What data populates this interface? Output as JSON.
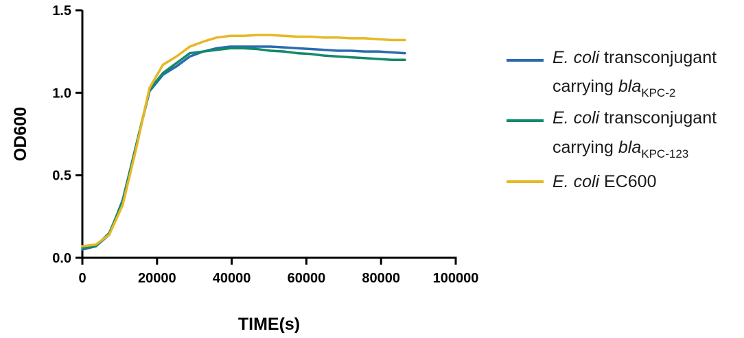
{
  "chart_data": {
    "type": "line",
    "xlabel": "TIME(s)",
    "ylabel": "OD600",
    "xlim": [
      0,
      100000
    ],
    "ylim": [
      0,
      1.5
    ],
    "x_ticks": [
      "0",
      "20000",
      "40000",
      "60000",
      "80000",
      "100000"
    ],
    "y_ticks": [
      "0.0",
      "0.5",
      "1.0",
      "1.5"
    ],
    "grid": false,
    "legend_position": "right",
    "x": [
      0,
      3600,
      7200,
      10800,
      14400,
      18000,
      21600,
      25200,
      28800,
      32400,
      36000,
      39600,
      43200,
      46800,
      50400,
      54000,
      57600,
      61200,
      64800,
      68400,
      72000,
      75600,
      79200,
      82800,
      86400
    ],
    "series": [
      {
        "color": "#2a6bb0",
        "legend": {
          "line1_italic": "E. coli",
          "line1_text": " transconjugant",
          "line2_text": "carrying ",
          "line2_italic": "bla",
          "line2_sub": "KPC-2"
        },
        "values": [
          0.05,
          0.07,
          0.14,
          0.35,
          0.68,
          1.01,
          1.11,
          1.16,
          1.22,
          1.25,
          1.27,
          1.28,
          1.28,
          1.28,
          1.28,
          1.275,
          1.27,
          1.265,
          1.26,
          1.255,
          1.255,
          1.25,
          1.25,
          1.245,
          1.24
        ]
      },
      {
        "color": "#128a6a",
        "legend": {
          "line1_italic": "E. coli",
          "line1_text": " transconjugant",
          "line2_text": "carrying ",
          "line2_italic": "bla",
          "line2_sub": "KPC-123"
        },
        "values": [
          0.06,
          0.07,
          0.15,
          0.34,
          0.68,
          1.02,
          1.12,
          1.18,
          1.24,
          1.25,
          1.26,
          1.27,
          1.27,
          1.265,
          1.255,
          1.25,
          1.24,
          1.235,
          1.225,
          1.22,
          1.215,
          1.21,
          1.205,
          1.2,
          1.2
        ]
      },
      {
        "color": "#e6b824",
        "legend": {
          "line1_italic": "E. coli",
          "line1_text": " EC600"
        },
        "values": [
          0.07,
          0.08,
          0.14,
          0.32,
          0.66,
          1.03,
          1.17,
          1.22,
          1.28,
          1.31,
          1.335,
          1.345,
          1.345,
          1.35,
          1.35,
          1.345,
          1.34,
          1.34,
          1.335,
          1.335,
          1.33,
          1.33,
          1.325,
          1.32,
          1.32
        ]
      }
    ]
  }
}
